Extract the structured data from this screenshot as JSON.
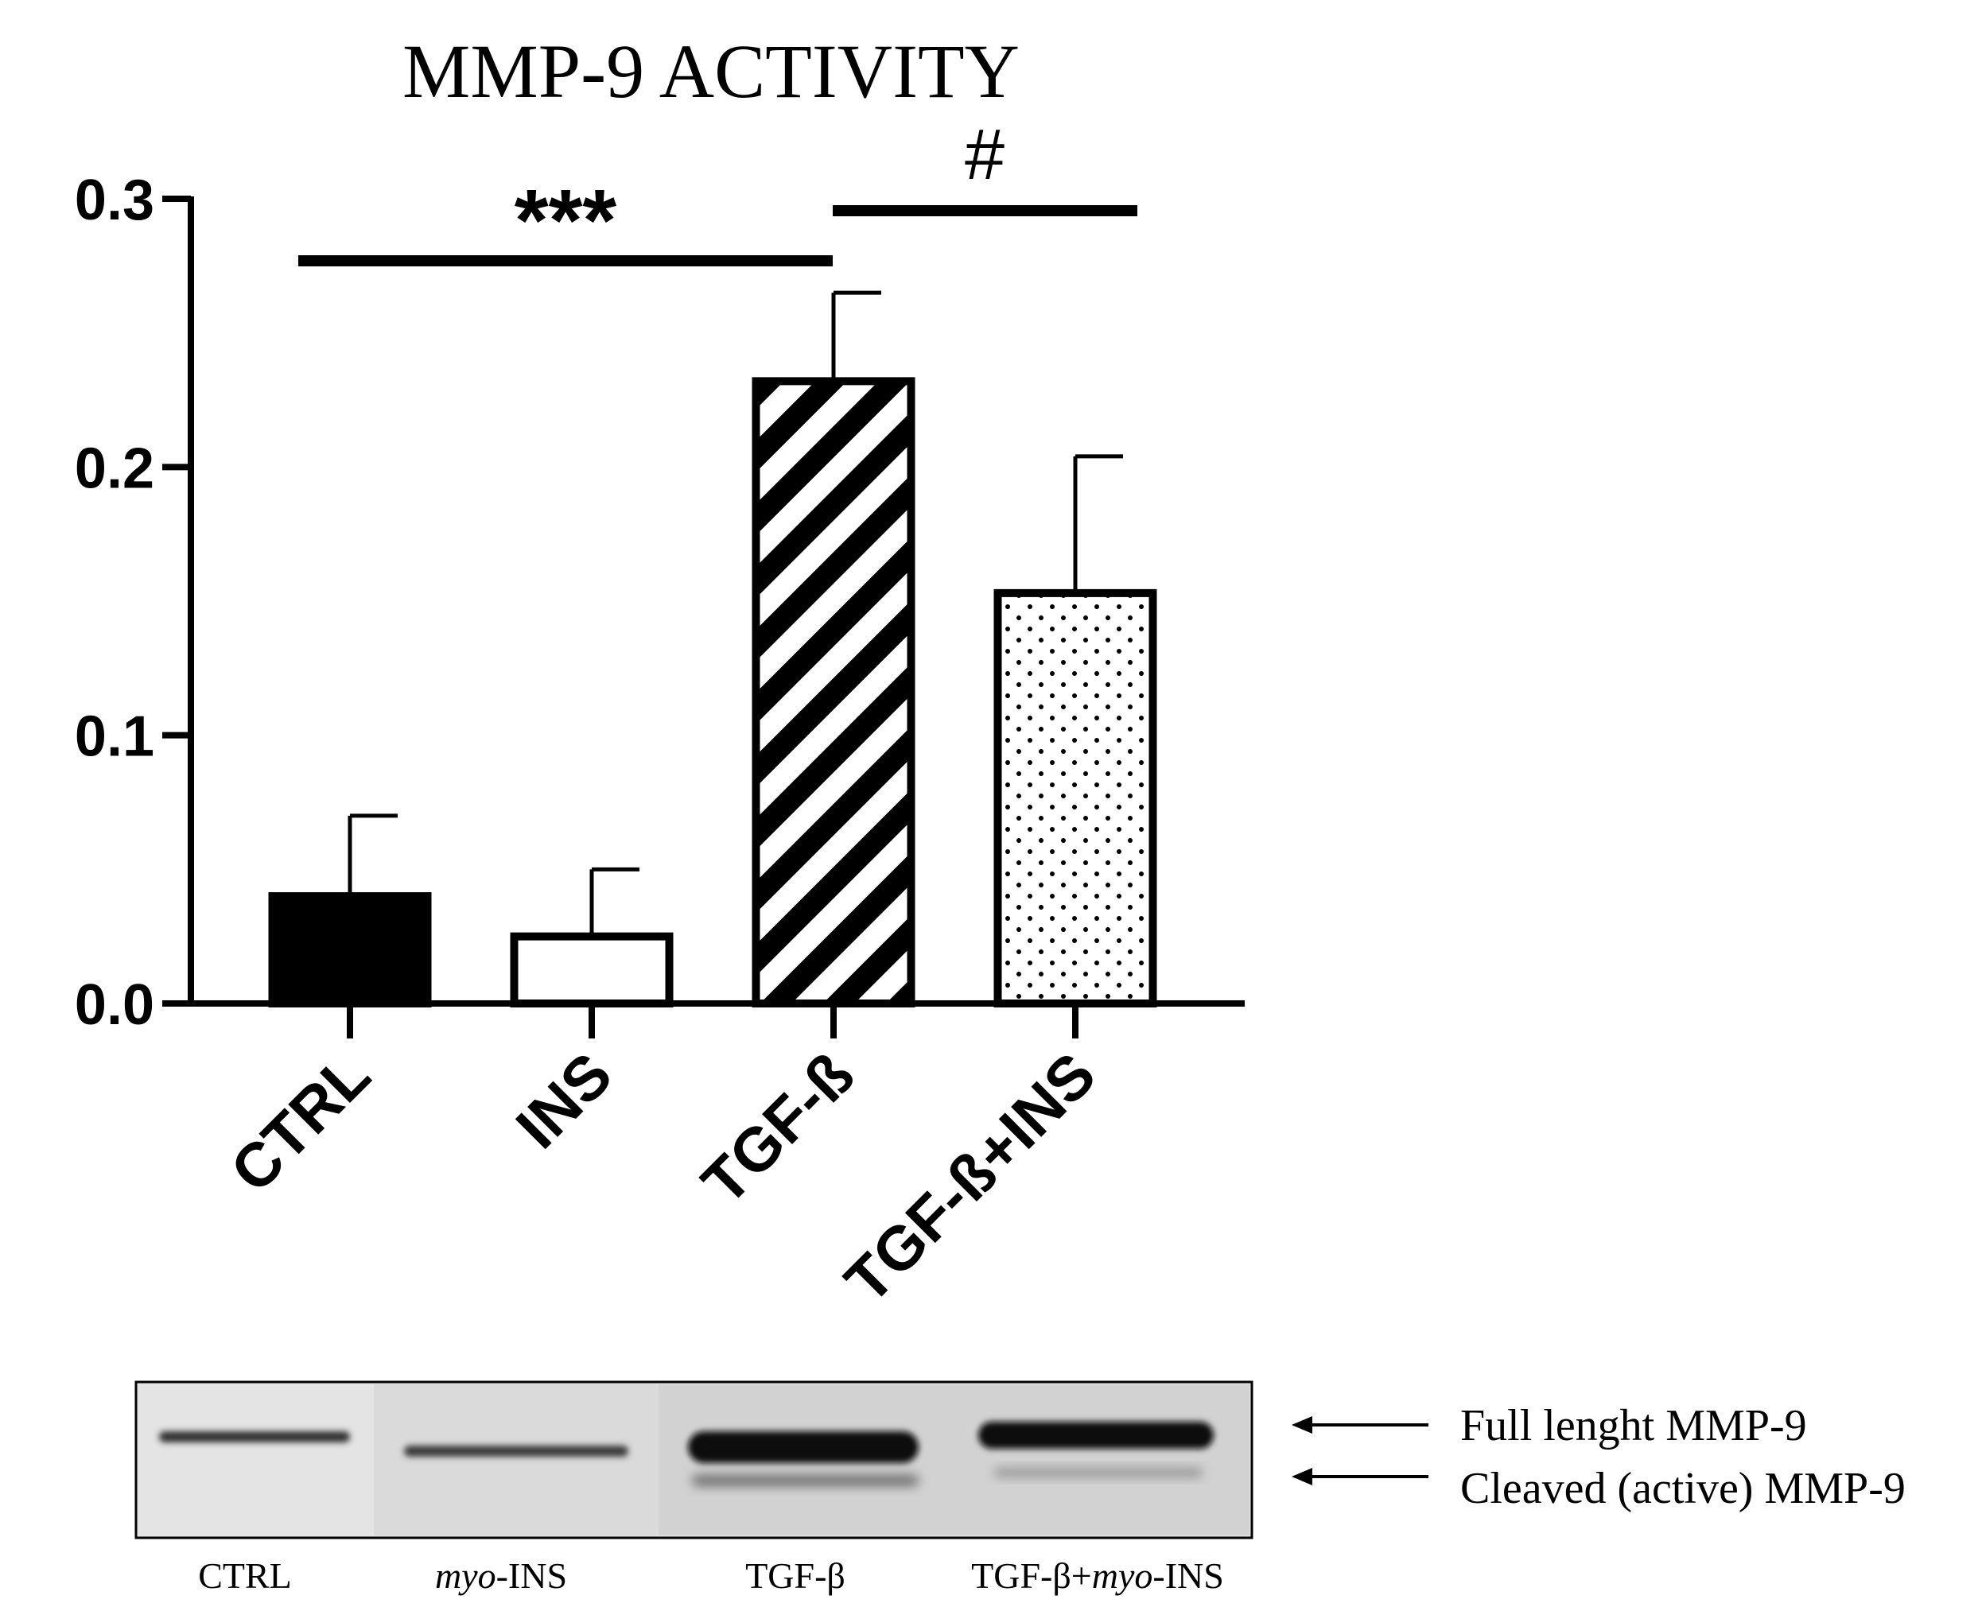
{
  "chart_data": {
    "type": "bar",
    "title": "MMP-9 ACTIVITY",
    "ylim": [
      0,
      0.3
    ],
    "yticks": [
      "0.0",
      "0.1",
      "0.2",
      "0.3"
    ],
    "categories": [
      "CTRL",
      "INS",
      "TGF-ß",
      "TGF-ß+INS"
    ],
    "values": [
      0.04,
      0.025,
      0.232,
      0.153
    ],
    "errors": [
      0.03,
      0.025,
      0.033,
      0.051
    ],
    "fills": [
      "solid",
      "white",
      "hatch",
      "dots"
    ],
    "significance": [
      {
        "label": "***",
        "from": 0,
        "to": 2
      },
      {
        "label": "#",
        "from": 2,
        "to": 3
      }
    ]
  },
  "blot": {
    "lanes": [
      {
        "pre": "",
        "italic": "",
        "post": "CTRL"
      },
      {
        "pre": "",
        "italic": "myo",
        "post": "-INS"
      },
      {
        "pre": "TGF-β",
        "italic": "",
        "post": ""
      },
      {
        "pre": "TGF-β+",
        "italic": "myo",
        "post": "-INS"
      }
    ],
    "band_labels": [
      "Full lenght MMP-9",
      "Cleaved (active) MMP-9"
    ]
  },
  "colors": {
    "ink": "#000000",
    "paper": "#ffffff",
    "blot_bg": "#e4e4e4"
  }
}
